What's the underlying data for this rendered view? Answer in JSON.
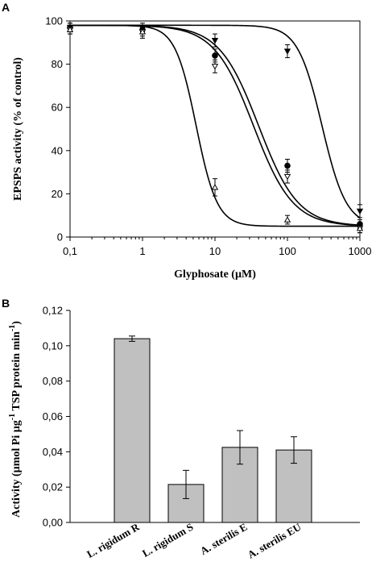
{
  "chart_data": [
    {
      "panel": "A",
      "type": "line",
      "xscale": "log",
      "xlabel": "Glyphosate (µM)",
      "ylabel": "EPSPS activity (% of control)",
      "xlim": [
        0.1,
        1000
      ],
      "ylim": [
        0,
        100
      ],
      "xticks": [
        0.1,
        1,
        10,
        100,
        1000
      ],
      "xtick_labels": [
        "0,1",
        "1",
        "10",
        "100",
        "1000"
      ],
      "yticks": [
        0,
        20,
        40,
        60,
        80,
        100
      ],
      "ytick_labels": [
        "0",
        "20",
        "40",
        "60",
        "80",
        "100"
      ],
      "grid": false,
      "series": [
        {
          "marker": "filled-down-triangle",
          "x": [
            0.1,
            1,
            10,
            100,
            1000
          ],
          "y": [
            97,
            97,
            91,
            86,
            12
          ],
          "err": [
            2,
            2,
            3,
            3,
            3
          ],
          "fit": {
            "top": 98,
            "bottom": 5,
            "ic50": 300,
            "hill": 2.6
          }
        },
        {
          "marker": "filled-circle",
          "x": [
            0.1,
            1,
            10,
            100,
            1000
          ],
          "y": [
            97,
            96,
            84,
            33,
            6
          ],
          "err": [
            2,
            2,
            3,
            3,
            2
          ],
          "fit": {
            "top": 98,
            "bottom": 5,
            "ic50": 40,
            "hill": 1.6
          }
        },
        {
          "marker": "open-down-triangle",
          "x": [
            0.1,
            1,
            10,
            100,
            1000
          ],
          "y": [
            96,
            95,
            79,
            28,
            4
          ],
          "err": [
            2,
            2,
            3,
            3,
            2
          ],
          "fit": {
            "top": 98,
            "bottom": 5,
            "ic50": 34,
            "hill": 1.6
          }
        },
        {
          "marker": "open-up-triangle",
          "x": [
            0.1,
            1,
            10,
            100,
            1000
          ],
          "y": [
            96,
            95,
            23,
            8,
            4
          ],
          "err": [
            2,
            3,
            4,
            2,
            2
          ],
          "fit": {
            "top": 98,
            "bottom": 5,
            "ic50": 5.5,
            "hill": 3.0
          }
        }
      ]
    },
    {
      "panel": "B",
      "type": "bar",
      "categories": [
        "L. rigidum R",
        "L. rigidum S",
        "A. sterilis E",
        "A. sterilis EU"
      ],
      "values": [
        0.104,
        0.0215,
        0.0425,
        0.041
      ],
      "errors": [
        0.0015,
        0.008,
        0.0095,
        0.0075
      ],
      "ylabel": "Activity (µmol Pi µg-1 TSP protein min-1)",
      "ylim": [
        0,
        0.12
      ],
      "yticks": [
        0,
        0.02,
        0.04,
        0.06,
        0.08,
        0.1,
        0.12
      ],
      "ytick_labels": [
        "0,00",
        "0,02",
        "0,04",
        "0,06",
        "0,08",
        "0,10",
        "0,12"
      ],
      "bar_color": "#c0c0c0",
      "grid": false
    }
  ],
  "labels": {
    "panel_a": "A",
    "panel_b": "B",
    "a_ylabel": "EPSPS activity (% of control)",
    "a_xlabel": "Glyphosate (µM)",
    "b_ylabel_main": "Activity (µmol Pi µg",
    "b_ylabel_sup1": "-1",
    "b_ylabel_mid": " TSP protein min",
    "b_ylabel_sup2": "-1",
    "b_ylabel_end": ")"
  }
}
